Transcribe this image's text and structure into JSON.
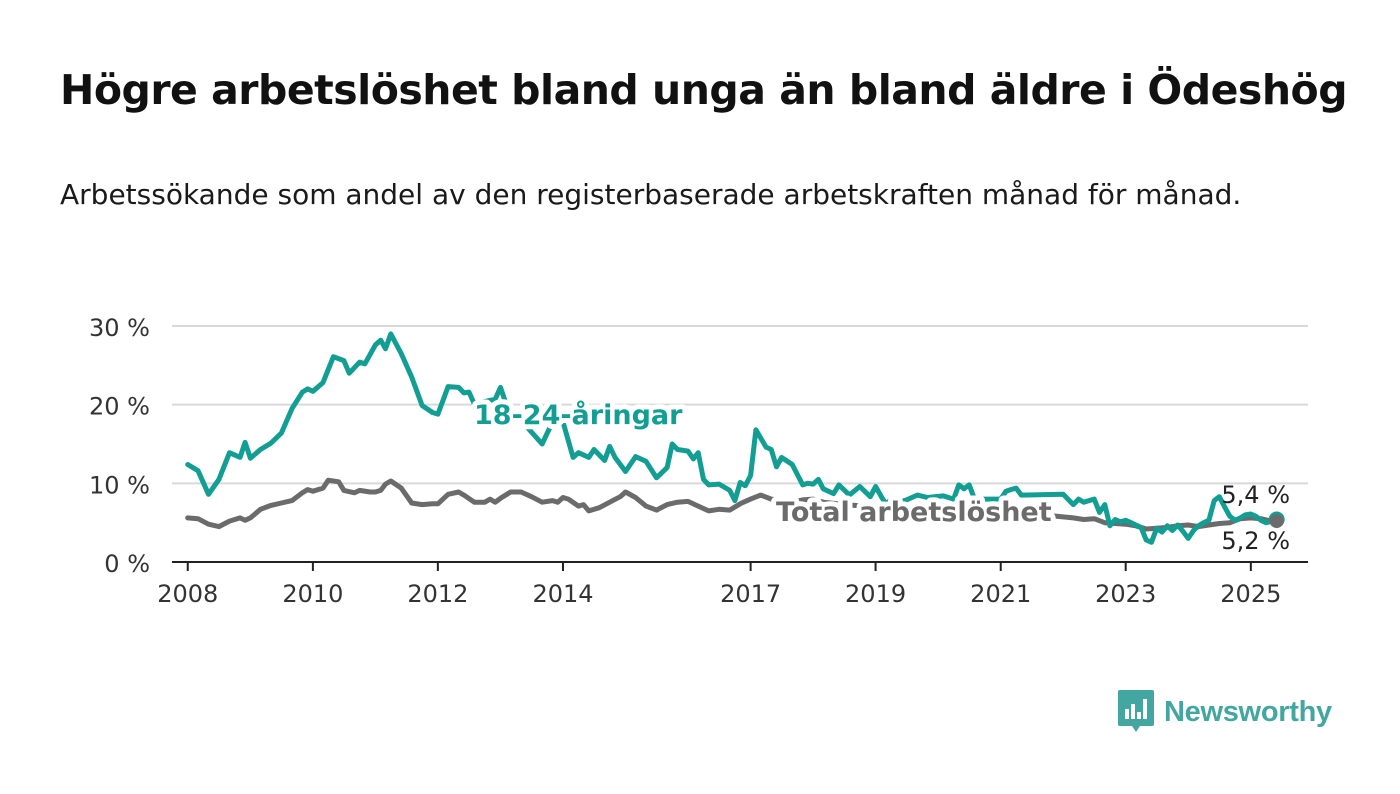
{
  "title": "Högre arbetslöshet bland unga än bland äldre i Ödeshög",
  "subtitle": "Arbetssökande som andel av den registerbaserade arbetskraften månad för månad.",
  "brand": {
    "name": "Newsworthy",
    "color": "#43a6a0",
    "logo_icon": "bar-chart-speech-bubble-icon"
  },
  "chart_data": {
    "type": "line",
    "x_type": "date",
    "xlim": [
      "2007-10-01",
      "2025-12-01"
    ],
    "ylim": [
      0,
      30
    ],
    "y_ticks": [
      0,
      10,
      20,
      30
    ],
    "y_tick_labels": [
      "0 %",
      "10 %",
      "20 %",
      "30 %"
    ],
    "x_ticks": [
      "2008-01-01",
      "2010-01-01",
      "2012-01-01",
      "2014-01-01",
      "2017-01-01",
      "2019-01-01",
      "2021-01-01",
      "2023-01-01",
      "2025-01-01"
    ],
    "x_tick_labels": [
      "2008",
      "2010",
      "2012",
      "2014",
      "2017",
      "2019",
      "2021",
      "2023",
      "2025"
    ],
    "grid": "horizontal",
    "series": [
      {
        "name": "18-24-åringar",
        "color": "#129e93",
        "end_label": "5,4 %",
        "points": [
          [
            "2008-01-01",
            12.4
          ],
          [
            "2008-03-01",
            11.6
          ],
          [
            "2008-05-01",
            8.6
          ],
          [
            "2008-07-01",
            10.5
          ],
          [
            "2008-09-01",
            13.9
          ],
          [
            "2008-11-01",
            13.3
          ],
          [
            "2008-12-01",
            15.2
          ],
          [
            "2009-01-01",
            13.2
          ],
          [
            "2009-03-01",
            14.3
          ],
          [
            "2009-05-01",
            15.1
          ],
          [
            "2009-07-01",
            16.4
          ],
          [
            "2009-09-01",
            19.5
          ],
          [
            "2009-11-01",
            21.6
          ],
          [
            "2009-12-01",
            22.0
          ],
          [
            "2010-01-01",
            21.7
          ],
          [
            "2010-03-01",
            22.8
          ],
          [
            "2010-05-01",
            26.1
          ],
          [
            "2010-07-01",
            25.6
          ],
          [
            "2010-08-01",
            24.0
          ],
          [
            "2010-10-01",
            25.4
          ],
          [
            "2010-11-01",
            25.2
          ],
          [
            "2011-01-01",
            27.6
          ],
          [
            "2011-02-01",
            28.2
          ],
          [
            "2011-03-01",
            27.1
          ],
          [
            "2011-04-01",
            29.0
          ],
          [
            "2011-06-01",
            26.5
          ],
          [
            "2011-08-01",
            23.5
          ],
          [
            "2011-10-01",
            19.9
          ],
          [
            "2011-12-01",
            19.0
          ],
          [
            "2012-01-01",
            18.8
          ],
          [
            "2012-03-01",
            22.3
          ],
          [
            "2012-05-01",
            22.2
          ],
          [
            "2012-06-01",
            21.5
          ],
          [
            "2012-07-01",
            21.6
          ],
          [
            "2012-08-01",
            20.1
          ],
          [
            "2012-12-01",
            20.7
          ],
          [
            "2013-01-01",
            22.2
          ],
          [
            "2013-02-01",
            20.2
          ],
          [
            "2013-09-01",
            15.0
          ],
          [
            "2013-11-01",
            17.8
          ],
          [
            "2014-01-01",
            17.8
          ],
          [
            "2014-03-01",
            13.3
          ],
          [
            "2014-04-01",
            13.9
          ],
          [
            "2014-06-01",
            13.3
          ],
          [
            "2014-07-01",
            14.3
          ],
          [
            "2014-09-01",
            12.9
          ],
          [
            "2014-10-01",
            14.7
          ],
          [
            "2014-11-01",
            13.3
          ],
          [
            "2015-01-01",
            11.5
          ],
          [
            "2015-03-01",
            13.4
          ],
          [
            "2015-05-01",
            12.8
          ],
          [
            "2015-07-01",
            10.7
          ],
          [
            "2015-09-01",
            12.0
          ],
          [
            "2015-10-01",
            15.0
          ],
          [
            "2015-11-01",
            14.3
          ],
          [
            "2016-01-01",
            14.1
          ],
          [
            "2016-02-01",
            13.1
          ],
          [
            "2016-03-01",
            13.9
          ],
          [
            "2016-04-01",
            10.5
          ],
          [
            "2016-05-01",
            9.8
          ],
          [
            "2016-07-01",
            9.9
          ],
          [
            "2016-09-01",
            9.1
          ],
          [
            "2016-10-01",
            7.8
          ],
          [
            "2016-11-01",
            10.1
          ],
          [
            "2016-12-01",
            9.7
          ],
          [
            "2017-01-01",
            11.0
          ],
          [
            "2017-02-01",
            16.8
          ],
          [
            "2017-04-01",
            14.6
          ],
          [
            "2017-05-01",
            14.3
          ],
          [
            "2017-06-01",
            12.1
          ],
          [
            "2017-07-01",
            13.3
          ],
          [
            "2017-09-01",
            12.4
          ],
          [
            "2017-11-01",
            9.8
          ],
          [
            "2017-12-01",
            10.0
          ],
          [
            "2018-01-01",
            9.9
          ],
          [
            "2018-02-01",
            10.5
          ],
          [
            "2018-03-01",
            9.3
          ],
          [
            "2018-05-01",
            8.7
          ],
          [
            "2018-06-01",
            9.8
          ],
          [
            "2018-08-01",
            8.5
          ],
          [
            "2018-10-01",
            9.6
          ],
          [
            "2018-12-01",
            8.3
          ],
          [
            "2019-01-01",
            9.6
          ],
          [
            "2019-02-01",
            8.4
          ],
          [
            "2019-03-01",
            7.4
          ],
          [
            "2019-04-01",
            7.9
          ],
          [
            "2019-05-01",
            8.1
          ],
          [
            "2019-06-01",
            7.7
          ],
          [
            "2019-07-01",
            7.9
          ],
          [
            "2019-09-01",
            8.5
          ],
          [
            "2019-11-01",
            8.2
          ],
          [
            "2020-02-01",
            8.4
          ],
          [
            "2020-04-01",
            8.0
          ],
          [
            "2020-05-01",
            9.8
          ],
          [
            "2020-06-01",
            9.3
          ],
          [
            "2020-07-01",
            9.8
          ],
          [
            "2020-08-01",
            8.0
          ],
          [
            "2021-01-01",
            8.0
          ],
          [
            "2021-02-01",
            9.0
          ],
          [
            "2021-03-01",
            9.2
          ],
          [
            "2021-04-01",
            9.4
          ],
          [
            "2021-05-01",
            8.5
          ],
          [
            "2022-01-01",
            8.6
          ],
          [
            "2022-03-01",
            7.3
          ],
          [
            "2022-04-01",
            8.0
          ],
          [
            "2022-05-01",
            7.6
          ],
          [
            "2022-07-01",
            8.0
          ],
          [
            "2022-08-01",
            6.3
          ],
          [
            "2022-09-01",
            7.3
          ],
          [
            "2022-10-01",
            4.6
          ],
          [
            "2022-11-01",
            5.4
          ],
          [
            "2022-12-01",
            5.1
          ],
          [
            "2023-01-01",
            5.3
          ],
          [
            "2023-02-01",
            5.0
          ],
          [
            "2023-03-01",
            4.7
          ],
          [
            "2023-04-01",
            4.4
          ],
          [
            "2023-05-01",
            2.8
          ],
          [
            "2023-06-01",
            2.5
          ],
          [
            "2023-07-01",
            4.3
          ],
          [
            "2023-08-01",
            3.8
          ],
          [
            "2023-09-01",
            4.6
          ],
          [
            "2023-10-01",
            4.0
          ],
          [
            "2023-11-01",
            4.7
          ],
          [
            "2023-12-01",
            3.9
          ],
          [
            "2024-01-01",
            3.0
          ],
          [
            "2024-02-01",
            4.0
          ],
          [
            "2024-03-01",
            4.6
          ],
          [
            "2024-04-01",
            5.0
          ],
          [
            "2024-05-01",
            5.3
          ],
          [
            "2024-06-01",
            7.8
          ],
          [
            "2024-07-01",
            8.3
          ],
          [
            "2024-08-01",
            7.0
          ],
          [
            "2024-09-01",
            5.8
          ],
          [
            "2024-10-01",
            5.3
          ],
          [
            "2024-11-01",
            5.6
          ],
          [
            "2024-12-01",
            6.0
          ],
          [
            "2025-01-01",
            6.1
          ],
          [
            "2025-02-01",
            5.8
          ],
          [
            "2025-03-01",
            5.3
          ],
          [
            "2025-04-01",
            5.0
          ],
          [
            "2025-05-01",
            5.2
          ],
          [
            "2025-06-01",
            5.4
          ]
        ]
      },
      {
        "name": "Total arbetslöshet",
        "color": "#6b6b6b",
        "end_label": "5,2 %",
        "points": [
          [
            "2008-01-01",
            5.6
          ],
          [
            "2008-03-01",
            5.5
          ],
          [
            "2008-05-01",
            4.8
          ],
          [
            "2008-07-01",
            4.5
          ],
          [
            "2008-09-01",
            5.2
          ],
          [
            "2008-11-01",
            5.6
          ],
          [
            "2008-12-01",
            5.3
          ],
          [
            "2009-01-01",
            5.6
          ],
          [
            "2009-03-01",
            6.7
          ],
          [
            "2009-05-01",
            7.2
          ],
          [
            "2009-07-01",
            7.5
          ],
          [
            "2009-09-01",
            7.8
          ],
          [
            "2009-11-01",
            8.8
          ],
          [
            "2009-12-01",
            9.2
          ],
          [
            "2010-01-01",
            9.0
          ],
          [
            "2010-03-01",
            9.4
          ],
          [
            "2010-04-01",
            10.4
          ],
          [
            "2010-06-01",
            10.2
          ],
          [
            "2010-07-01",
            9.1
          ],
          [
            "2010-09-01",
            8.8
          ],
          [
            "2010-10-01",
            9.1
          ],
          [
            "2010-12-01",
            8.9
          ],
          [
            "2011-01-01",
            8.9
          ],
          [
            "2011-02-01",
            9.1
          ],
          [
            "2011-03-01",
            9.9
          ],
          [
            "2011-04-01",
            10.3
          ],
          [
            "2011-06-01",
            9.4
          ],
          [
            "2011-08-01",
            7.5
          ],
          [
            "2011-10-01",
            7.3
          ],
          [
            "2011-12-01",
            7.4
          ],
          [
            "2012-01-01",
            7.4
          ],
          [
            "2012-03-01",
            8.6
          ],
          [
            "2012-05-01",
            8.9
          ],
          [
            "2012-06-01",
            8.5
          ],
          [
            "2012-08-01",
            7.6
          ],
          [
            "2012-10-01",
            7.6
          ],
          [
            "2012-11-01",
            8.0
          ],
          [
            "2012-12-01",
            7.6
          ],
          [
            "2013-01-01",
            8.1
          ],
          [
            "2013-03-01",
            8.9
          ],
          [
            "2013-05-01",
            8.9
          ],
          [
            "2013-07-01",
            8.3
          ],
          [
            "2013-09-01",
            7.6
          ],
          [
            "2013-11-01",
            7.8
          ],
          [
            "2013-12-01",
            7.6
          ],
          [
            "2014-01-01",
            8.2
          ],
          [
            "2014-02-01",
            8.0
          ],
          [
            "2014-04-01",
            7.1
          ],
          [
            "2014-05-01",
            7.3
          ],
          [
            "2014-06-01",
            6.5
          ],
          [
            "2014-08-01",
            6.9
          ],
          [
            "2014-10-01",
            7.6
          ],
          [
            "2014-12-01",
            8.3
          ],
          [
            "2015-01-01",
            8.9
          ],
          [
            "2015-03-01",
            8.2
          ],
          [
            "2015-05-01",
            7.1
          ],
          [
            "2015-07-01",
            6.6
          ],
          [
            "2015-09-01",
            7.3
          ],
          [
            "2015-11-01",
            7.6
          ],
          [
            "2016-01-01",
            7.7
          ],
          [
            "2016-03-01",
            7.1
          ],
          [
            "2016-05-01",
            6.5
          ],
          [
            "2016-07-01",
            6.7
          ],
          [
            "2016-09-01",
            6.6
          ],
          [
            "2016-11-01",
            7.4
          ],
          [
            "2016-12-01",
            7.7
          ],
          [
            "2017-01-01",
            8.0
          ],
          [
            "2017-03-01",
            8.5
          ],
          [
            "2017-05-01",
            8.0
          ],
          [
            "2017-07-01",
            7.8
          ],
          [
            "2017-09-01",
            7.6
          ],
          [
            "2017-11-01",
            7.9
          ],
          [
            "2018-01-01",
            8.0
          ],
          [
            "2018-03-01",
            7.6
          ],
          [
            "2018-06-01",
            7.4
          ],
          [
            "2018-09-01",
            7.2
          ],
          [
            "2018-12-01",
            7.0
          ],
          [
            "2019-03-01",
            6.9
          ],
          [
            "2019-06-01",
            6.8
          ],
          [
            "2019-09-01",
            6.8
          ],
          [
            "2019-12-01",
            6.9
          ],
          [
            "2020-03-01",
            7.0
          ],
          [
            "2020-06-01",
            7.2
          ],
          [
            "2020-09-01",
            7.0
          ],
          [
            "2020-12-01",
            6.8
          ],
          [
            "2021-03-01",
            6.5
          ],
          [
            "2021-06-01",
            6.2
          ],
          [
            "2021-09-01",
            6.0
          ],
          [
            "2021-12-01",
            5.8
          ],
          [
            "2022-03-01",
            5.6
          ],
          [
            "2022-05-01",
            5.4
          ],
          [
            "2022-07-01",
            5.5
          ],
          [
            "2022-09-01",
            5.0
          ],
          [
            "2022-11-01",
            4.9
          ],
          [
            "2023-01-01",
            4.8
          ],
          [
            "2023-03-01",
            4.6
          ],
          [
            "2023-05-01",
            4.2
          ],
          [
            "2023-07-01",
            4.3
          ],
          [
            "2023-09-01",
            4.4
          ],
          [
            "2023-11-01",
            4.6
          ],
          [
            "2024-01-01",
            4.7
          ],
          [
            "2024-03-01",
            4.5
          ],
          [
            "2024-05-01",
            4.7
          ],
          [
            "2024-07-01",
            4.9
          ],
          [
            "2024-09-01",
            5.0
          ],
          [
            "2024-11-01",
            5.5
          ],
          [
            "2025-01-01",
            5.6
          ],
          [
            "2025-03-01",
            5.5
          ],
          [
            "2025-05-01",
            5.2
          ],
          [
            "2025-06-01",
            5.2
          ]
        ]
      }
    ]
  }
}
